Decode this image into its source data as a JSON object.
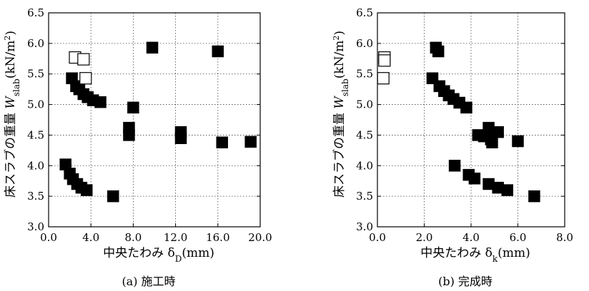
{
  "chart_data": [
    {
      "type": "scatter",
      "caption": "(a) 施工時",
      "xlabel": {
        "text": "中央たわみ δ",
        "sub": "D",
        "unit": "(mm)"
      },
      "ylabel": {
        "prefix": "床スラブの重量 ",
        "var": "W",
        "sub": "slab",
        "unit": "(kN/m",
        "sup": "2",
        "close": ")"
      },
      "xlim": [
        0,
        20
      ],
      "ylim": [
        3.0,
        6.5
      ],
      "xticks": [
        "0.0",
        "4.0",
        "8.0",
        "12.0",
        "16.0",
        "20.0"
      ],
      "xtick_values": [
        0,
        4,
        8,
        12,
        16,
        20
      ],
      "yticks": [
        "3.0",
        "3.5",
        "4.0",
        "4.5",
        "5.0",
        "5.5",
        "6.0",
        "6.5"
      ],
      "ytick_values": [
        3.0,
        3.5,
        4.0,
        4.5,
        5.0,
        5.5,
        6.0,
        6.5
      ],
      "grid": true,
      "series": [
        {
          "marker": "filled-square",
          "points": [
            [
              9.8,
              5.93
            ],
            [
              16.0,
              5.87
            ],
            [
              2.2,
              5.43
            ],
            [
              2.6,
              5.3
            ],
            [
              2.9,
              5.25
            ],
            [
              3.3,
              5.17
            ],
            [
              3.7,
              5.12
            ],
            [
              4.2,
              5.07
            ],
            [
              4.9,
              5.04
            ],
            [
              8.0,
              4.95
            ],
            [
              7.6,
              4.62
            ],
            [
              7.6,
              4.5
            ],
            [
              12.5,
              4.55
            ],
            [
              12.5,
              4.45
            ],
            [
              16.4,
              4.38
            ],
            [
              19.1,
              4.39
            ],
            [
              1.6,
              4.02
            ],
            [
              2.0,
              3.87
            ],
            [
              2.3,
              3.78
            ],
            [
              2.7,
              3.7
            ],
            [
              3.1,
              3.64
            ],
            [
              3.6,
              3.6
            ],
            [
              6.1,
              3.5
            ]
          ]
        },
        {
          "marker": "open-square",
          "points": [
            [
              2.5,
              5.77
            ],
            [
              3.3,
              5.74
            ],
            [
              3.5,
              5.43
            ]
          ]
        }
      ]
    },
    {
      "type": "scatter",
      "caption": "(b) 完成時",
      "xlabel": {
        "text": "中央たわみ δ",
        "sub": "k",
        "unit": "(mm)"
      },
      "ylabel": {
        "prefix": "床スラブの重量 ",
        "var": "W",
        "sub": "slab",
        "unit": "(kN/m",
        "sup": "2",
        "close": ")"
      },
      "xlim": [
        0,
        8
      ],
      "ylim": [
        3.0,
        6.5
      ],
      "xticks": [
        "0.0",
        "2.0",
        "4.0",
        "6.0",
        "8.0"
      ],
      "xtick_values": [
        0,
        2,
        4,
        6,
        8
      ],
      "yticks": [
        "3.0",
        "3.5",
        "4.0",
        "4.5",
        "5.0",
        "5.5",
        "6.0",
        "6.5"
      ],
      "ytick_values": [
        3.0,
        3.5,
        4.0,
        4.5,
        5.0,
        5.5,
        6.0,
        6.5
      ],
      "grid": true,
      "series": [
        {
          "marker": "filled-square",
          "points": [
            [
              2.5,
              5.93
            ],
            [
              2.6,
              5.87
            ],
            [
              2.35,
              5.43
            ],
            [
              2.65,
              5.3
            ],
            [
              2.85,
              5.22
            ],
            [
              3.05,
              5.15
            ],
            [
              3.25,
              5.09
            ],
            [
              3.5,
              5.03
            ],
            [
              3.8,
              4.95
            ],
            [
              4.3,
              4.5
            ],
            [
              4.55,
              4.48
            ],
            [
              4.75,
              4.62
            ],
            [
              4.85,
              4.43
            ],
            [
              4.9,
              4.38
            ],
            [
              5.15,
              4.55
            ],
            [
              6.0,
              4.4
            ],
            [
              3.3,
              4.0
            ],
            [
              3.9,
              3.85
            ],
            [
              4.15,
              3.79
            ],
            [
              4.75,
              3.7
            ],
            [
              5.15,
              3.64
            ],
            [
              5.55,
              3.6
            ],
            [
              6.7,
              3.5
            ]
          ]
        },
        {
          "marker": "open-square",
          "points": [
            [
              0.3,
              5.77
            ],
            [
              0.3,
              5.72
            ],
            [
              0.25,
              5.43
            ]
          ]
        }
      ]
    }
  ]
}
